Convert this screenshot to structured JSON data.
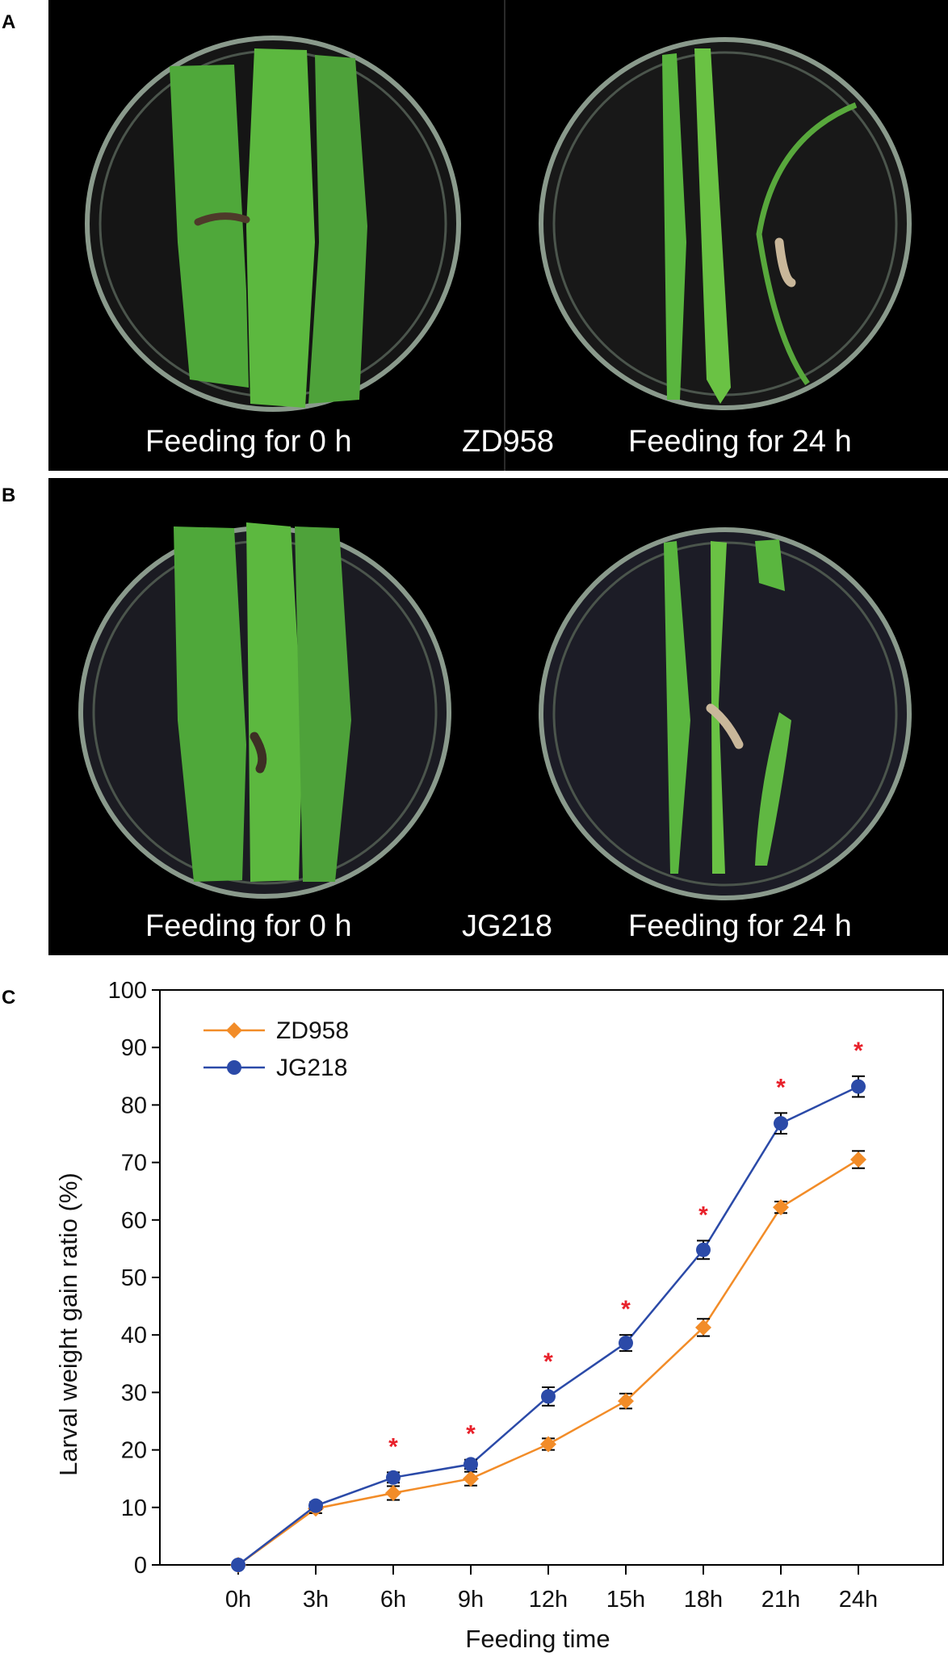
{
  "panels": {
    "a": {
      "letter": "A",
      "caption_left": "Feeding for 0 h",
      "caption_center": "ZD958",
      "caption_right": "Feeding for 24 h"
    },
    "b": {
      "letter": "B",
      "caption_left": "Feeding for 0 h",
      "caption_center": "JG218",
      "caption_right": "Feeding for 24 h"
    },
    "c": {
      "letter": "C"
    }
  },
  "chart_data": {
    "type": "line",
    "categories": [
      "0h",
      "3h",
      "6h",
      "9h",
      "12h",
      "15h",
      "18h",
      "21h",
      "24h"
    ],
    "xlabel": "Feeding time",
    "ylabel": "Larval weight gain ratio (%)",
    "ylim": [
      0,
      100
    ],
    "yticks": [
      0,
      10,
      20,
      30,
      40,
      50,
      60,
      70,
      80,
      90,
      100
    ],
    "legend_position": "top-left",
    "series": [
      {
        "name": "ZD958",
        "color": "#f28c28",
        "marker": "diamond",
        "values": [
          0,
          9.8,
          12.5,
          15.0,
          21.0,
          28.5,
          41.3,
          62.2,
          70.5
        ],
        "errors": [
          0,
          0.8,
          1.2,
          1.2,
          1.0,
          1.3,
          1.5,
          1.0,
          1.5
        ]
      },
      {
        "name": "JG218",
        "color": "#2b4aa8",
        "marker": "circle",
        "values": [
          0,
          10.3,
          15.2,
          17.5,
          29.3,
          38.6,
          54.8,
          76.8,
          83.2
        ],
        "errors": [
          0,
          0.6,
          0.9,
          0.8,
          1.6,
          1.4,
          1.6,
          1.8,
          1.8
        ]
      }
    ],
    "significance": [
      "",
      "",
      "*",
      "*",
      "*",
      "*",
      "*",
      "*",
      "*"
    ]
  },
  "style": {
    "axis_color": "#000000",
    "significance_color": "#e8202a"
  }
}
